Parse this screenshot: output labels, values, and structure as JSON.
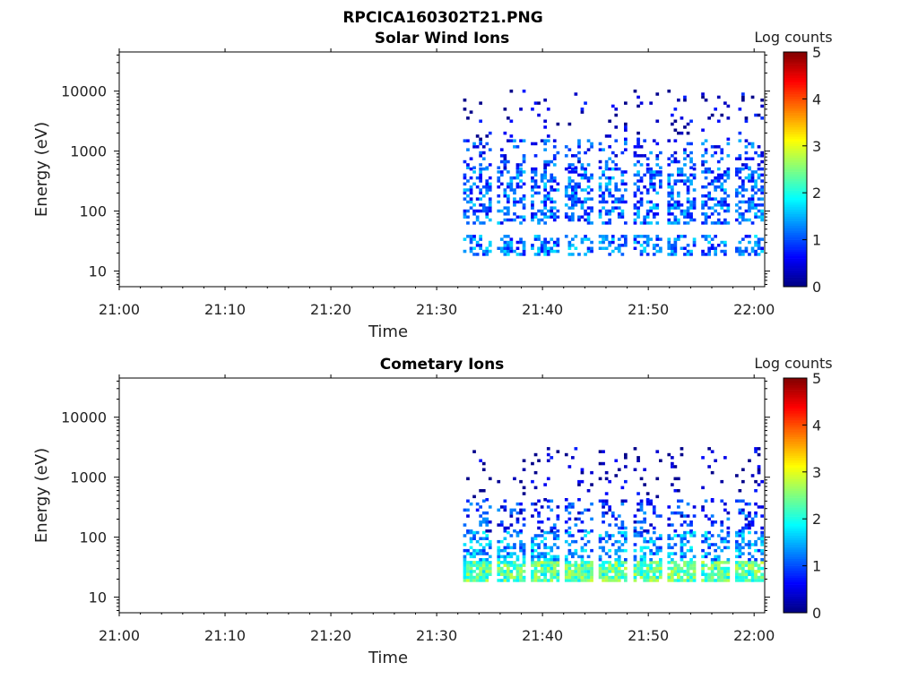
{
  "figure_title": "RPCICA160302T21.PNG",
  "chart_data": [
    {
      "type": "heatmap",
      "title": "Solar Wind Ions",
      "xlabel": "Time",
      "ylabel": "Energy (eV)",
      "x_tick_labels": [
        "21:00",
        "21:10",
        "21:20",
        "21:30",
        "21:40",
        "21:50",
        "22:00"
      ],
      "x_range_minutes": [
        0,
        61
      ],
      "y_tick_labels": [
        "10",
        "100",
        "1000",
        "10000"
      ],
      "y_ticks": [
        10,
        100,
        1000,
        10000
      ],
      "y_scale": "log",
      "ylim": [
        5.5,
        45000
      ],
      "colorbar": {
        "label": "Log counts",
        "range": [
          0,
          5
        ],
        "ticks": [
          "0",
          "1",
          "2",
          "3",
          "4",
          "5"
        ],
        "colormap": "jet"
      },
      "scan_start_minutes": [
        32.5,
        35.7,
        38.9,
        42.1,
        45.3,
        48.6,
        51.8,
        55.0,
        58.2
      ],
      "bands": [
        {
          "energy_range": [
            18,
            40
          ],
          "level": 1.2
        },
        {
          "energy_range": [
            60,
            500
          ],
          "level": 1.1
        },
        {
          "energy_range": [
            500,
            1500
          ],
          "level": 0.9
        },
        {
          "energy_range": [
            1500,
            10000
          ],
          "level": 0.3
        }
      ]
    },
    {
      "type": "heatmap",
      "title": "Cometary Ions",
      "xlabel": "Time",
      "ylabel": "Energy (eV)",
      "x_tick_labels": [
        "21:00",
        "21:10",
        "21:20",
        "21:30",
        "21:40",
        "21:50",
        "22:00"
      ],
      "x_range_minutes": [
        0,
        61
      ],
      "y_tick_labels": [
        "10",
        "100",
        "1000",
        "10000"
      ],
      "y_ticks": [
        10,
        100,
        1000,
        10000
      ],
      "y_scale": "log",
      "ylim": [
        5.5,
        45000
      ],
      "colorbar": {
        "label": "Log counts",
        "range": [
          0,
          5
        ],
        "ticks": [
          "0",
          "1",
          "2",
          "3",
          "4",
          "5"
        ],
        "colormap": "jet"
      },
      "scan_start_minutes": [
        32.5,
        35.7,
        38.9,
        42.1,
        45.3,
        48.6,
        51.8,
        55.0,
        58.2
      ],
      "bands": [
        {
          "energy_range": [
            18,
            40
          ],
          "level": 2.3
        },
        {
          "energy_range": [
            40,
            120
          ],
          "level": 1.4
        },
        {
          "energy_range": [
            120,
            400
          ],
          "level": 0.8
        },
        {
          "energy_range": [
            400,
            3000
          ],
          "level": 0.2
        }
      ]
    }
  ]
}
